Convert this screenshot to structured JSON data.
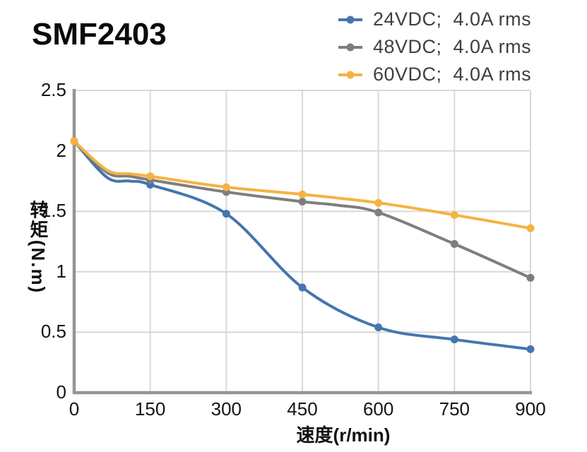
{
  "header": {
    "title": "SMF2403"
  },
  "legend": {
    "position": "top-right",
    "marker": "line-with-dot"
  },
  "chart_data": {
    "type": "line",
    "title": "SMF2403",
    "xlabel": "速度(r/min)",
    "ylabel": "转矩(N.m)",
    "xlim": [
      0,
      900
    ],
    "ylim": [
      0,
      2.5
    ],
    "grid": true,
    "axis_color": "#959595",
    "grid_color": "#d8d8d8",
    "xticks": {
      "values": [
        0,
        150,
        300,
        450,
        600,
        750,
        900
      ],
      "labels": [
        "0",
        "150",
        "300",
        "450",
        "600",
        "750",
        "900"
      ]
    },
    "yticks": {
      "values": [
        0,
        0.5,
        1,
        1.5,
        2,
        2.5
      ],
      "labels": [
        "0",
        "0.5",
        "1",
        "1.5",
        "2",
        "2.5"
      ]
    },
    "x": [
      0,
      150,
      300,
      450,
      600,
      750,
      900
    ],
    "series": [
      {
        "name": "24VDC;  4.0A rms",
        "color": "#4575AF",
        "values": [
          2.08,
          1.72,
          1.48,
          0.87,
          0.54,
          0.44,
          0.36
        ],
        "shape_points": [
          [
            0,
            2.08
          ],
          [
            65,
            1.78
          ],
          [
            110,
            1.75
          ],
          [
            150,
            1.72
          ],
          [
            300,
            1.48
          ],
          [
            450,
            0.87
          ],
          [
            600,
            0.54
          ],
          [
            750,
            0.44
          ],
          [
            900,
            0.36
          ]
        ]
      },
      {
        "name": "48VDC;  4.0A rms",
        "color": "#7E7E7E",
        "values": [
          2.08,
          1.76,
          1.66,
          1.58,
          1.49,
          1.23,
          0.95
        ],
        "shape_points": [
          [
            0,
            2.08
          ],
          [
            65,
            1.82
          ],
          [
            110,
            1.79
          ],
          [
            150,
            1.76
          ],
          [
            300,
            1.66
          ],
          [
            450,
            1.58
          ],
          [
            520,
            1.55
          ],
          [
            600,
            1.49
          ],
          [
            750,
            1.23
          ],
          [
            900,
            0.95
          ]
        ]
      },
      {
        "name": "60VDC;  4.0A rms",
        "color": "#F5B342",
        "values": [
          2.08,
          1.79,
          1.7,
          1.64,
          1.57,
          1.47,
          1.36
        ],
        "shape_points": [
          [
            0,
            2.08
          ],
          [
            65,
            1.84
          ],
          [
            110,
            1.81
          ],
          [
            150,
            1.79
          ],
          [
            300,
            1.7
          ],
          [
            450,
            1.64
          ],
          [
            600,
            1.57
          ],
          [
            750,
            1.47
          ],
          [
            900,
            1.36
          ]
        ]
      }
    ]
  }
}
